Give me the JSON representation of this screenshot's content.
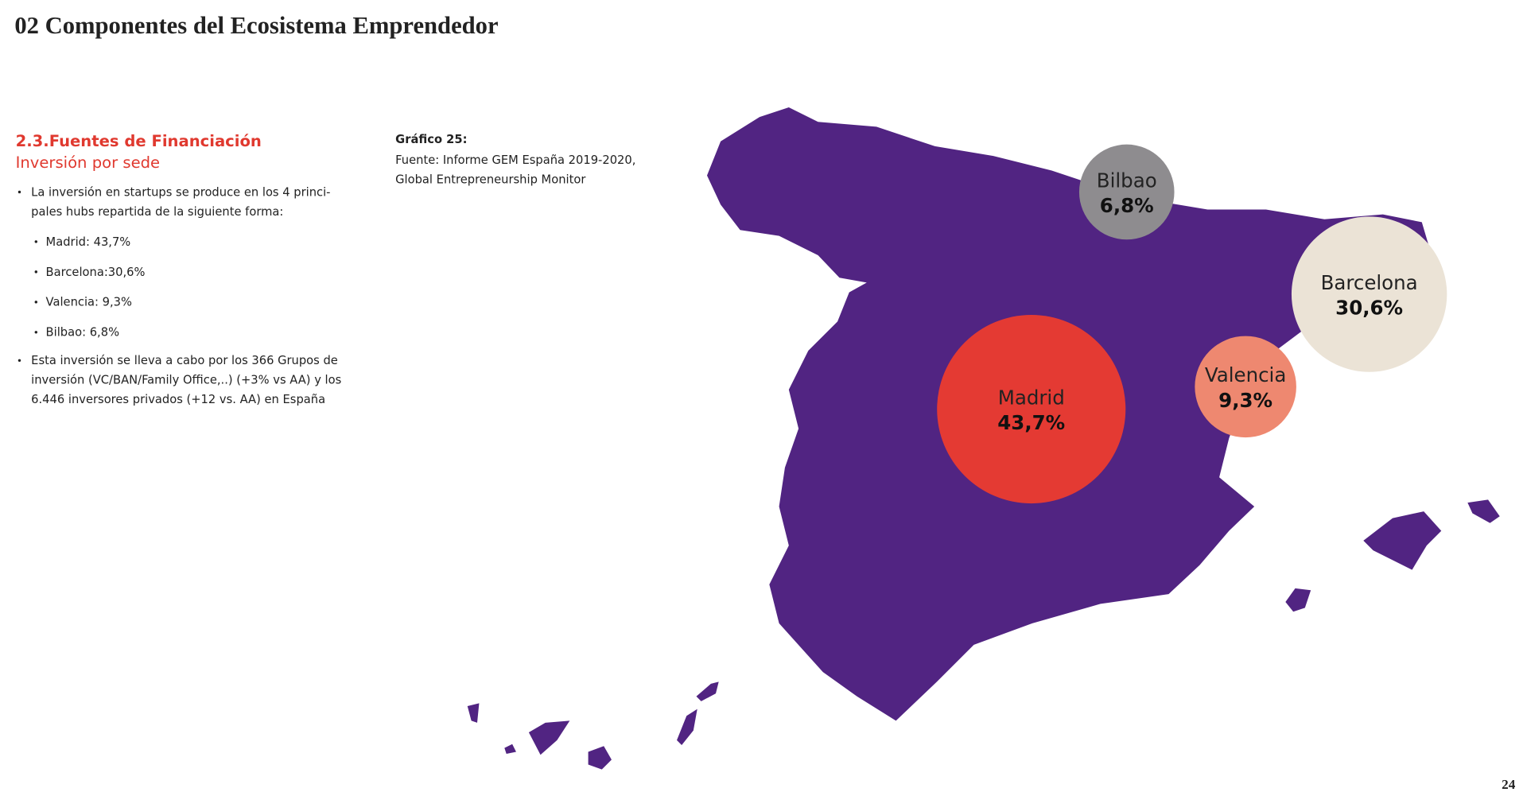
{
  "title": "02 Componentes del Ecosistema Emprendedor",
  "section": {
    "heading": "2.3.Fuentes de Financiación",
    "subheading": "Inversión por sede",
    "intro": [
      "La inversión en startups se produce en los 4 princi-",
      "pales hubs repartida de la siguiente forma:"
    ],
    "hub_list": [
      "Madrid: 43,7%",
      "Barcelona:30,6%",
      "Valencia: 9,3%",
      "Bilbao: 6,8%"
    ],
    "note": [
      "Esta inversión se lleva a cabo por los 366 Grupos de",
      "inversión (VC/BAN/Family Office,..) (+3% vs AA) y los",
      "6.446 inversores privados (+12 vs. AA) en España"
    ]
  },
  "caption": {
    "label": "Gráfico 25:",
    "source": [
      "Fuente: Informe GEM España 2019-2020,",
      "Global Entrepreneurship Monitor"
    ]
  },
  "map": {
    "land_color": "#512482",
    "hubs": [
      {
        "name": "Bilbao",
        "value": 6.8,
        "value_label": "6,8%",
        "color": "#8e8c8f"
      },
      {
        "name": "Barcelona",
        "value": 30.6,
        "value_label": "30,6%",
        "color": "#ebe3d6"
      },
      {
        "name": "Valencia",
        "value": 9.3,
        "value_label": "9,3%",
        "color": "#ee8870"
      },
      {
        "name": "Madrid",
        "value": 43.7,
        "value_label": "43,7%",
        "color": "#e43a33"
      }
    ]
  },
  "page_number": "24"
}
